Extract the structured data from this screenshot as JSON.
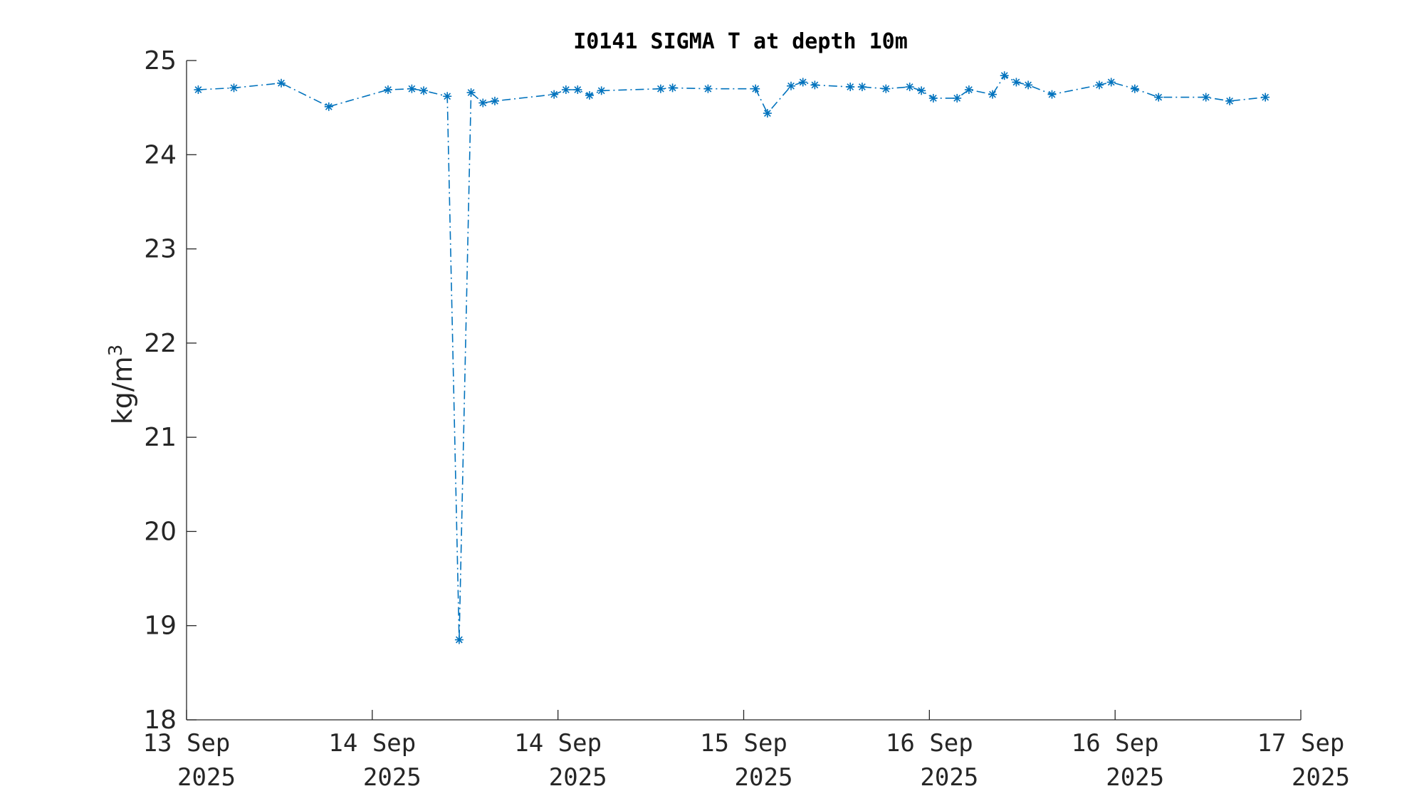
{
  "chart_data": {
    "type": "line",
    "title": "I0141 SIGMA T at depth 10m",
    "ylabel_base": "kg/m",
    "ylabel_sup": "3",
    "ylim": [
      18,
      25
    ],
    "yticks": [
      18,
      19,
      20,
      21,
      22,
      23,
      24,
      25
    ],
    "xlim": [
      0,
      6
    ],
    "xtick_positions": [
      0,
      1,
      2,
      3,
      4,
      5,
      6
    ],
    "xtick_labels": [
      [
        "13 Sep",
        "2025"
      ],
      [
        "14 Sep",
        "2025"
      ],
      [
        "14 Sep",
        "2025"
      ],
      [
        "15 Sep",
        "2025"
      ],
      [
        "16 Sep",
        "2025"
      ],
      [
        "16 Sep",
        "2025"
      ],
      [
        "17 Sep",
        "2025"
      ]
    ],
    "series_color": "#0072BD",
    "marker": "asterisk",
    "line_style": "dash-dot",
    "points": [
      {
        "x": 0.063,
        "y": 24.69
      },
      {
        "x": 0.255,
        "y": 24.71
      },
      {
        "x": 0.51,
        "y": 24.76
      },
      {
        "x": 0.766,
        "y": 24.51
      },
      {
        "x": 1.085,
        "y": 24.69
      },
      {
        "x": 1.213,
        "y": 24.7
      },
      {
        "x": 1.277,
        "y": 24.68
      },
      {
        "x": 1.404,
        "y": 24.62
      },
      {
        "x": 1.468,
        "y": 18.85
      },
      {
        "x": 1.532,
        "y": 24.66
      },
      {
        "x": 1.596,
        "y": 24.55
      },
      {
        "x": 1.66,
        "y": 24.57
      },
      {
        "x": 1.979,
        "y": 24.64
      },
      {
        "x": 2.043,
        "y": 24.69
      },
      {
        "x": 2.106,
        "y": 24.69
      },
      {
        "x": 2.17,
        "y": 24.63
      },
      {
        "x": 2.234,
        "y": 24.68
      },
      {
        "x": 2.553,
        "y": 24.7
      },
      {
        "x": 2.617,
        "y": 24.71
      },
      {
        "x": 2.808,
        "y": 24.7
      },
      {
        "x": 3.064,
        "y": 24.7
      },
      {
        "x": 3.128,
        "y": 24.44
      },
      {
        "x": 3.255,
        "y": 24.73
      },
      {
        "x": 3.319,
        "y": 24.77
      },
      {
        "x": 3.383,
        "y": 24.74
      },
      {
        "x": 3.574,
        "y": 24.72
      },
      {
        "x": 3.638,
        "y": 24.72
      },
      {
        "x": 3.766,
        "y": 24.7
      },
      {
        "x": 3.894,
        "y": 24.72
      },
      {
        "x": 3.957,
        "y": 24.68
      },
      {
        "x": 4.021,
        "y": 24.6
      },
      {
        "x": 4.149,
        "y": 24.6
      },
      {
        "x": 4.213,
        "y": 24.69
      },
      {
        "x": 4.34,
        "y": 24.64
      },
      {
        "x": 4.404,
        "y": 24.84
      },
      {
        "x": 4.468,
        "y": 24.77
      },
      {
        "x": 4.532,
        "y": 24.74
      },
      {
        "x": 4.66,
        "y": 24.64
      },
      {
        "x": 4.915,
        "y": 24.74
      },
      {
        "x": 4.979,
        "y": 24.77
      },
      {
        "x": 5.106,
        "y": 24.7
      },
      {
        "x": 5.234,
        "y": 24.61
      },
      {
        "x": 5.489,
        "y": 24.61
      },
      {
        "x": 5.617,
        "y": 24.57
      },
      {
        "x": 5.809,
        "y": 24.61
      }
    ]
  }
}
